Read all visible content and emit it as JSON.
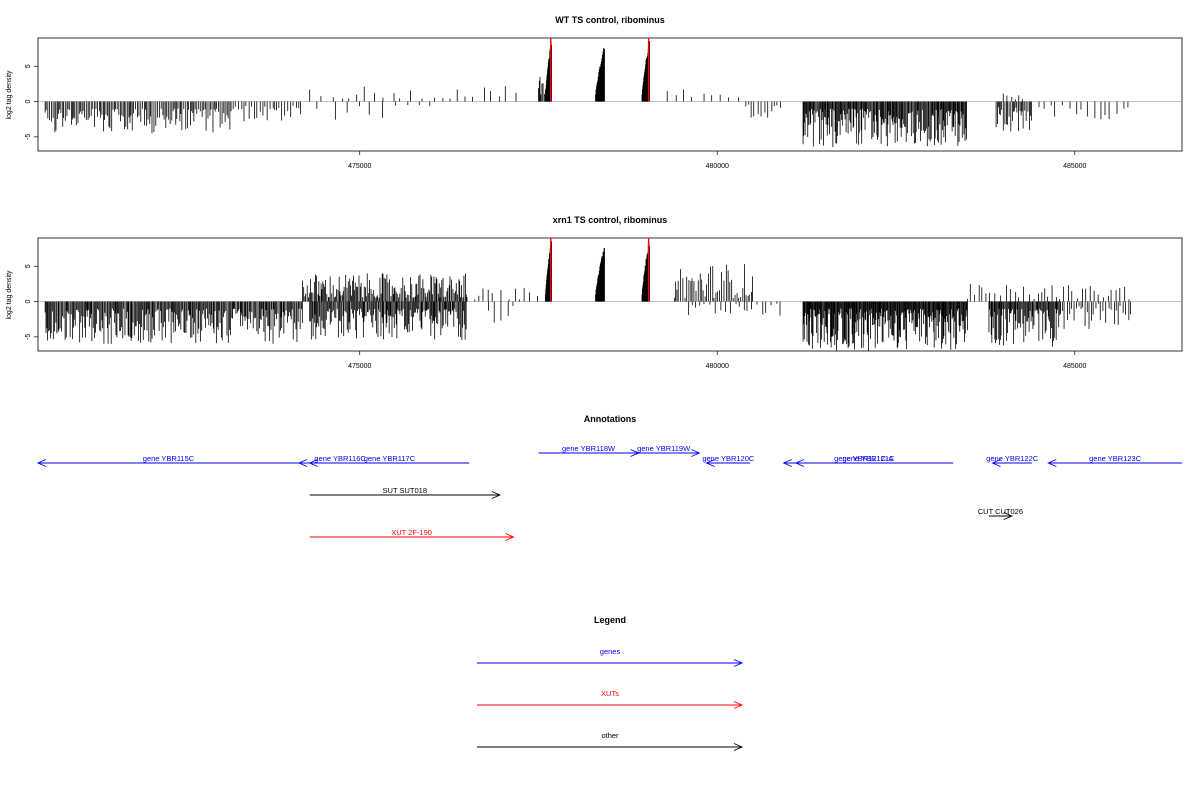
{
  "chart_data": [
    {
      "type": "bar",
      "title": "WT TS control, ribominus",
      "ylabel": "log2 tag density",
      "xlabel": "",
      "xlim": [
        470500,
        486500
      ],
      "ylim": [
        -7,
        9
      ],
      "xticks": [
        475000,
        480000,
        485000
      ],
      "yticks": [
        -5,
        0,
        5
      ],
      "grid": false,
      "highlight_color": "#ff0000",
      "clusters": [
        {
          "x0": 470600,
          "x1": 473200,
          "sign": -1,
          "min": 1.0,
          "max": 4.5,
          "spacing": 20
        },
        {
          "x0": 473200,
          "x1": 474200,
          "sign": -1,
          "min": 0.6,
          "max": 2.8,
          "spacing": 35
        },
        {
          "x0": 474300,
          "x1": 477200,
          "sign": 1,
          "min": 0.4,
          "max": 2.2,
          "spacing": 130
        },
        {
          "x0": 474400,
          "x1": 476000,
          "sign": -1,
          "min": 0.3,
          "max": 2.6,
          "spacing": 220
        },
        {
          "x0": 477500,
          "x1": 477620,
          "sign": 1,
          "min": 1.0,
          "max": 4.0,
          "spacing": 15
        },
        {
          "x0": 479300,
          "x1": 480300,
          "sign": 1,
          "min": 0.5,
          "max": 2.0,
          "spacing": 130
        },
        {
          "x0": 480400,
          "x1": 480900,
          "sign": -1,
          "min": 0.4,
          "max": 2.5,
          "spacing": 45
        },
        {
          "x0": 481200,
          "x1": 483500,
          "sign": -1,
          "min": 1.0,
          "max": 6.5,
          "spacing": 12
        },
        {
          "x0": 483900,
          "x1": 484400,
          "sign": -1,
          "min": 0.8,
          "max": 4.5,
          "spacing": 18
        },
        {
          "x0": 484000,
          "x1": 484300,
          "sign": 1,
          "min": 0.3,
          "max": 2.0,
          "spacing": 60
        },
        {
          "x0": 484500,
          "x1": 485800,
          "sign": -1,
          "min": 0.3,
          "max": 2.5,
          "spacing": 80
        }
      ],
      "peaks": [
        {
          "x0": 477600,
          "x1": 477680,
          "max": 9.0,
          "red": true
        },
        {
          "x0": 478300,
          "x1": 478420,
          "max": 8.0,
          "red": false
        },
        {
          "x0": 478950,
          "x1": 479050,
          "max": 9.0,
          "red": true
        }
      ]
    },
    {
      "type": "bar",
      "title": "xrn1 TS control, ribominus",
      "ylabel": "log2 tag density",
      "xlabel": "",
      "xlim": [
        470500,
        486500
      ],
      "ylim": [
        -7,
        9
      ],
      "xticks": [
        475000,
        480000,
        485000
      ],
      "yticks": [
        -5,
        0,
        5
      ],
      "grid": false,
      "highlight_color": "#ff0000",
      "clusters": [
        {
          "x0": 470600,
          "x1": 474200,
          "sign": -1,
          "min": 1.0,
          "max": 6.0,
          "spacing": 14
        },
        {
          "x0": 474200,
          "x1": 476500,
          "sign": 1,
          "min": 0.5,
          "max": 4.0,
          "spacing": 16
        },
        {
          "x0": 474300,
          "x1": 476500,
          "sign": -1,
          "min": 1.0,
          "max": 5.5,
          "spacing": 14
        },
        {
          "x0": 476500,
          "x1": 477500,
          "sign": 1,
          "min": 0.3,
          "max": 2.0,
          "spacing": 90
        },
        {
          "x0": 476800,
          "x1": 477200,
          "sign": -1,
          "min": 0.5,
          "max": 3.0,
          "spacing": 80
        },
        {
          "x0": 479400,
          "x1": 480500,
          "sign": 1,
          "min": 0.5,
          "max": 5.5,
          "spacing": 25
        },
        {
          "x0": 479600,
          "x1": 480900,
          "sign": -1,
          "min": 0.3,
          "max": 2.0,
          "spacing": 60
        },
        {
          "x0": 481200,
          "x1": 483500,
          "sign": -1,
          "min": 1.0,
          "max": 7.0,
          "spacing": 10
        },
        {
          "x0": 483500,
          "x1": 485800,
          "sign": 1,
          "min": 0.3,
          "max": 2.5,
          "spacing": 60
        },
        {
          "x0": 483800,
          "x1": 484800,
          "sign": -1,
          "min": 1.0,
          "max": 6.5,
          "spacing": 12
        },
        {
          "x0": 484800,
          "x1": 485800,
          "sign": -1,
          "min": 0.3,
          "max": 4.0,
          "spacing": 35
        }
      ],
      "peaks": [
        {
          "x0": 477600,
          "x1": 477680,
          "max": 9.0,
          "red": true
        },
        {
          "x0": 478300,
          "x1": 478420,
          "max": 8.0,
          "red": false
        },
        {
          "x0": 478950,
          "x1": 479050,
          "max": 9.0,
          "red": true
        }
      ]
    }
  ],
  "annotations": {
    "title": "Annotations",
    "genes_color": "#0000ff",
    "xuts_color": "#ff0000",
    "other_color": "#000000",
    "features": [
      {
        "label": "gene YBR115C",
        "start": 470500,
        "end": 474150,
        "strand": "-",
        "row": 1,
        "kind": "gene"
      },
      {
        "label": "gene YBR116C",
        "start": 474150,
        "end": 475300,
        "strand": "-",
        "row": 1,
        "kind": "gene"
      },
      {
        "label": "gene YBR117C",
        "start": 474300,
        "end": 476530,
        "strand": "-",
        "row": 1,
        "kind": "gene"
      },
      {
        "label": "gene YBR118W",
        "start": 477500,
        "end": 478900,
        "strand": "+",
        "row": 0,
        "kind": "gene"
      },
      {
        "label": "gene YBR119W",
        "start": 478750,
        "end": 479750,
        "strand": "+",
        "row": 0,
        "kind": "gene"
      },
      {
        "label": "gene YBR120C",
        "start": 479850,
        "end": 480460,
        "strand": "-",
        "row": 1,
        "kind": "gene"
      },
      {
        "label": "gene YBR121C",
        "start": 480930,
        "end": 483300,
        "strand": "-",
        "row": 1,
        "kind": "gene"
      },
      {
        "label": "gene YBR121C-A",
        "start": 481100,
        "end": 483000,
        "strand": "-",
        "row": 1,
        "kind": "gene"
      },
      {
        "label": "gene YBR122C",
        "start": 483850,
        "end": 484400,
        "strand": "-",
        "row": 1,
        "kind": "gene"
      },
      {
        "label": "gene YBR123C",
        "start": 484630,
        "end": 486500,
        "strand": "-",
        "row": 1,
        "kind": "gene"
      },
      {
        "label": "SUT SUT018",
        "start": 474300,
        "end": 476960,
        "strand": "+",
        "row": 2,
        "kind": "other"
      },
      {
        "label": "CUT CUT026",
        "start": 483800,
        "end": 484120,
        "strand": "+",
        "row": 3,
        "kind": "other"
      },
      {
        "label": "XUT 2F-190",
        "start": 474300,
        "end": 477150,
        "strand": "+",
        "row": 4,
        "kind": "xut"
      }
    ]
  },
  "legend": {
    "title": "Legend",
    "items": [
      {
        "label": "genes",
        "color": "#0000ff"
      },
      {
        "label": "XUTs",
        "color": "#ff0000"
      },
      {
        "label": "other",
        "color": "#000000"
      }
    ]
  }
}
